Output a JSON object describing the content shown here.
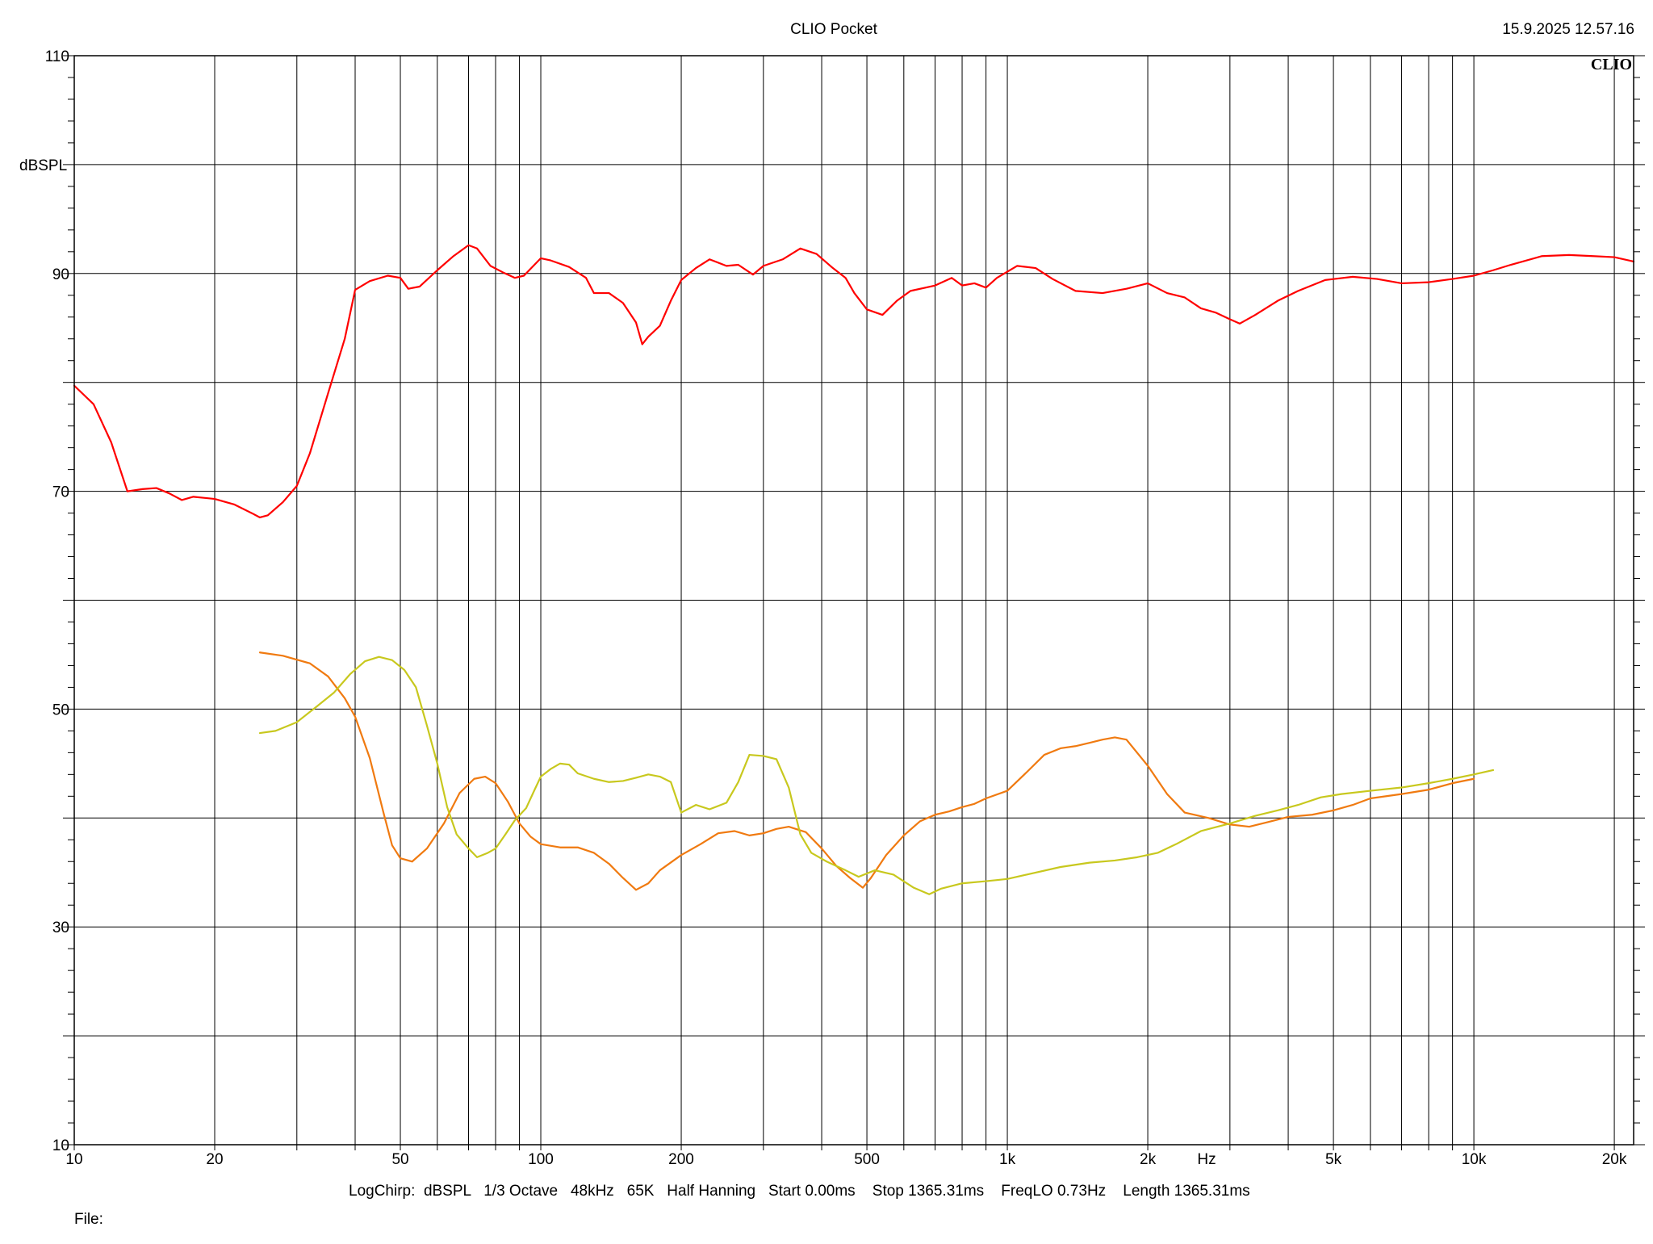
{
  "header": {
    "title": "CLIO Pocket",
    "timestamp": "15.9.2025 12.57.16",
    "logo": "CLIO"
  },
  "footer": {
    "settings": "LogChirp:  dBSPL   1/3 Octave   48kHz   65K   Half Hanning   Start 0.00ms    Stop 1365.31ms    FreqLO 0.73Hz    Length 1365.31ms",
    "file_label": "File:"
  },
  "colors": {
    "grid": "#000000",
    "background": "#ffffff"
  },
  "chart_data": {
    "type": "line",
    "title": "CLIO Pocket",
    "xlabel": "Hz",
    "ylabel": "dBSPL",
    "xscale": "log",
    "xlim": [
      10,
      22000
    ],
    "ylim": [
      10,
      110
    ],
    "grid": true,
    "x_ticks": [
      {
        "value": 10,
        "label": "10"
      },
      {
        "value": 20,
        "label": "20"
      },
      {
        "value": 50,
        "label": "50"
      },
      {
        "value": 100,
        "label": "100"
      },
      {
        "value": 200,
        "label": "200"
      },
      {
        "value": 500,
        "label": "500"
      },
      {
        "value": 1000,
        "label": "1k"
      },
      {
        "value": 2000,
        "label": "2k"
      },
      {
        "value": 5000,
        "label": "5k"
      },
      {
        "value": 10000,
        "label": "10k"
      },
      {
        "value": 20000,
        "label": "20k"
      }
    ],
    "y_ticks": [
      {
        "value": 10,
        "label": "10"
      },
      {
        "value": 30,
        "label": "30"
      },
      {
        "value": 50,
        "label": "50"
      },
      {
        "value": 70,
        "label": "70"
      },
      {
        "value": 90,
        "label": "90"
      },
      {
        "value": 110,
        "label": "110"
      }
    ],
    "series": [
      {
        "color": "#ff0000",
        "points": [
          [
            10,
            79.7
          ],
          [
            11,
            78
          ],
          [
            12,
            74.5
          ],
          [
            13,
            70
          ],
          [
            14,
            70.2
          ],
          [
            15,
            70.3
          ],
          [
            16,
            69.8
          ],
          [
            17,
            69.2
          ],
          [
            18,
            69.5
          ],
          [
            20,
            69.3
          ],
          [
            22,
            68.8
          ],
          [
            24,
            68
          ],
          [
            25,
            67.6
          ],
          [
            26,
            67.8
          ],
          [
            28,
            69
          ],
          [
            30,
            70.5
          ],
          [
            32,
            73.5
          ],
          [
            35,
            79
          ],
          [
            38,
            84
          ],
          [
            40,
            88.5
          ],
          [
            43,
            89.3
          ],
          [
            47,
            89.8
          ],
          [
            50,
            89.6
          ],
          [
            52,
            88.6
          ],
          [
            55,
            88.8
          ],
          [
            60,
            90.3
          ],
          [
            65,
            91.6
          ],
          [
            70,
            92.6
          ],
          [
            73,
            92.3
          ],
          [
            78,
            90.7
          ],
          [
            83,
            90.1
          ],
          [
            88,
            89.6
          ],
          [
            92,
            89.8
          ],
          [
            100,
            91.4
          ],
          [
            105,
            91.2
          ],
          [
            115,
            90.6
          ],
          [
            125,
            89.6
          ],
          [
            130,
            88.2
          ],
          [
            140,
            88.2
          ],
          [
            150,
            87.3
          ],
          [
            160,
            85.5
          ],
          [
            165,
            83.5
          ],
          [
            170,
            84.2
          ],
          [
            180,
            85.2
          ],
          [
            190,
            87.5
          ],
          [
            200,
            89.4
          ],
          [
            215,
            90.5
          ],
          [
            230,
            91.3
          ],
          [
            250,
            90.7
          ],
          [
            265,
            90.8
          ],
          [
            285,
            89.9
          ],
          [
            300,
            90.7
          ],
          [
            330,
            91.3
          ],
          [
            360,
            92.3
          ],
          [
            390,
            91.8
          ],
          [
            420,
            90.6
          ],
          [
            450,
            89.6
          ],
          [
            470,
            88.2
          ],
          [
            500,
            86.7
          ],
          [
            540,
            86.2
          ],
          [
            580,
            87.5
          ],
          [
            620,
            88.4
          ],
          [
            700,
            88.9
          ],
          [
            760,
            89.6
          ],
          [
            800,
            88.9
          ],
          [
            850,
            89.1
          ],
          [
            900,
            88.7
          ],
          [
            950,
            89.6
          ],
          [
            1050,
            90.7
          ],
          [
            1150,
            90.5
          ],
          [
            1250,
            89.5
          ],
          [
            1400,
            88.4
          ],
          [
            1600,
            88.2
          ],
          [
            1800,
            88.6
          ],
          [
            2000,
            89.1
          ],
          [
            2200,
            88.2
          ],
          [
            2400,
            87.8
          ],
          [
            2600,
            86.8
          ],
          [
            2800,
            86.4
          ],
          [
            3000,
            85.8
          ],
          [
            3150,
            85.4
          ],
          [
            3400,
            86.2
          ],
          [
            3800,
            87.5
          ],
          [
            4200,
            88.4
          ],
          [
            4800,
            89.4
          ],
          [
            5500,
            89.7
          ],
          [
            6200,
            89.5
          ],
          [
            7000,
            89.1
          ],
          [
            8000,
            89.2
          ],
          [
            9000,
            89.5
          ],
          [
            10000,
            89.8
          ],
          [
            11000,
            90.3
          ],
          [
            12000,
            90.8
          ],
          [
            14000,
            91.6
          ],
          [
            16000,
            91.7
          ],
          [
            18000,
            91.6
          ],
          [
            20000,
            91.5
          ],
          [
            22000,
            91.1
          ]
        ]
      },
      {
        "color": "#f07a10",
        "points": [
          [
            25,
            55.2
          ],
          [
            28,
            54.9
          ],
          [
            32,
            54.2
          ],
          [
            35,
            53
          ],
          [
            38,
            51
          ],
          [
            40,
            49.3
          ],
          [
            43,
            45.5
          ],
          [
            46,
            40.5
          ],
          [
            48,
            37.5
          ],
          [
            50,
            36.3
          ],
          [
            53,
            36
          ],
          [
            57,
            37.2
          ],
          [
            62,
            39.5
          ],
          [
            67,
            42.3
          ],
          [
            72,
            43.6
          ],
          [
            76,
            43.8
          ],
          [
            80,
            43.2
          ],
          [
            85,
            41.5
          ],
          [
            90,
            39.5
          ],
          [
            95,
            38.3
          ],
          [
            100,
            37.6
          ],
          [
            110,
            37.3
          ],
          [
            120,
            37.3
          ],
          [
            130,
            36.8
          ],
          [
            140,
            35.8
          ],
          [
            150,
            34.5
          ],
          [
            160,
            33.4
          ],
          [
            170,
            34
          ],
          [
            180,
            35.2
          ],
          [
            200,
            36.6
          ],
          [
            220,
            37.6
          ],
          [
            240,
            38.6
          ],
          [
            260,
            38.8
          ],
          [
            280,
            38.4
          ],
          [
            300,
            38.6
          ],
          [
            320,
            39
          ],
          [
            340,
            39.2
          ],
          [
            370,
            38.7
          ],
          [
            400,
            37.2
          ],
          [
            430,
            35.6
          ],
          [
            460,
            34.5
          ],
          [
            490,
            33.6
          ],
          [
            510,
            34.5
          ],
          [
            550,
            36.6
          ],
          [
            600,
            38.4
          ],
          [
            650,
            39.7
          ],
          [
            700,
            40.3
          ],
          [
            750,
            40.6
          ],
          [
            800,
            41
          ],
          [
            850,
            41.3
          ],
          [
            900,
            41.8
          ],
          [
            1000,
            42.5
          ],
          [
            1100,
            44.2
          ],
          [
            1200,
            45.8
          ],
          [
            1300,
            46.4
          ],
          [
            1400,
            46.6
          ],
          [
            1500,
            46.9
          ],
          [
            1600,
            47.2
          ],
          [
            1700,
            47.4
          ],
          [
            1800,
            47.2
          ],
          [
            2000,
            44.8
          ],
          [
            2200,
            42.2
          ],
          [
            2400,
            40.5
          ],
          [
            2700,
            40
          ],
          [
            3000,
            39.4
          ],
          [
            3300,
            39.2
          ],
          [
            3600,
            39.6
          ],
          [
            4000,
            40.1
          ],
          [
            4500,
            40.3
          ],
          [
            5000,
            40.7
          ],
          [
            5500,
            41.2
          ],
          [
            6000,
            41.8
          ],
          [
            7000,
            42.2
          ],
          [
            8000,
            42.6
          ],
          [
            9000,
            43.2
          ],
          [
            10000,
            43.6
          ]
        ]
      },
      {
        "color": "#c8c81e",
        "points": [
          [
            25,
            47.8
          ],
          [
            27,
            48
          ],
          [
            30,
            48.8
          ],
          [
            33,
            50.2
          ],
          [
            36,
            51.5
          ],
          [
            39,
            53.2
          ],
          [
            42,
            54.4
          ],
          [
            45,
            54.8
          ],
          [
            48,
            54.5
          ],
          [
            51,
            53.6
          ],
          [
            54,
            52
          ],
          [
            57,
            48.5
          ],
          [
            60,
            45
          ],
          [
            63,
            41
          ],
          [
            66,
            38.5
          ],
          [
            70,
            37.2
          ],
          [
            73,
            36.4
          ],
          [
            77,
            36.8
          ],
          [
            80,
            37.2
          ],
          [
            84,
            38.5
          ],
          [
            88,
            39.8
          ],
          [
            93,
            40.9
          ],
          [
            97,
            42.6
          ],
          [
            100,
            43.8
          ],
          [
            105,
            44.5
          ],
          [
            110,
            45
          ],
          [
            115,
            44.9
          ],
          [
            120,
            44.1
          ],
          [
            130,
            43.6
          ],
          [
            140,
            43.3
          ],
          [
            150,
            43.4
          ],
          [
            160,
            43.7
          ],
          [
            170,
            44
          ],
          [
            180,
            43.8
          ],
          [
            190,
            43.3
          ],
          [
            200,
            40.5
          ],
          [
            215,
            41.2
          ],
          [
            230,
            40.8
          ],
          [
            250,
            41.4
          ],
          [
            265,
            43.3
          ],
          [
            280,
            45.8
          ],
          [
            300,
            45.7
          ],
          [
            320,
            45.4
          ],
          [
            340,
            42.8
          ],
          [
            360,
            38.5
          ],
          [
            380,
            36.8
          ],
          [
            410,
            36
          ],
          [
            450,
            35.2
          ],
          [
            480,
            34.6
          ],
          [
            520,
            35.2
          ],
          [
            570,
            34.8
          ],
          [
            630,
            33.6
          ],
          [
            680,
            33
          ],
          [
            720,
            33.5
          ],
          [
            800,
            34
          ],
          [
            900,
            34.2
          ],
          [
            1000,
            34.4
          ],
          [
            1100,
            34.8
          ],
          [
            1300,
            35.5
          ],
          [
            1500,
            35.9
          ],
          [
            1700,
            36.1
          ],
          [
            1900,
            36.4
          ],
          [
            2100,
            36.8
          ],
          [
            2300,
            37.6
          ],
          [
            2600,
            38.8
          ],
          [
            3000,
            39.5
          ],
          [
            3400,
            40.2
          ],
          [
            3800,
            40.7
          ],
          [
            4200,
            41.2
          ],
          [
            4700,
            41.9
          ],
          [
            5200,
            42.2
          ],
          [
            6000,
            42.5
          ],
          [
            7000,
            42.8
          ],
          [
            8000,
            43.2
          ],
          [
            9000,
            43.6
          ],
          [
            10000,
            44
          ],
          [
            11000,
            44.4
          ]
        ]
      }
    ]
  }
}
